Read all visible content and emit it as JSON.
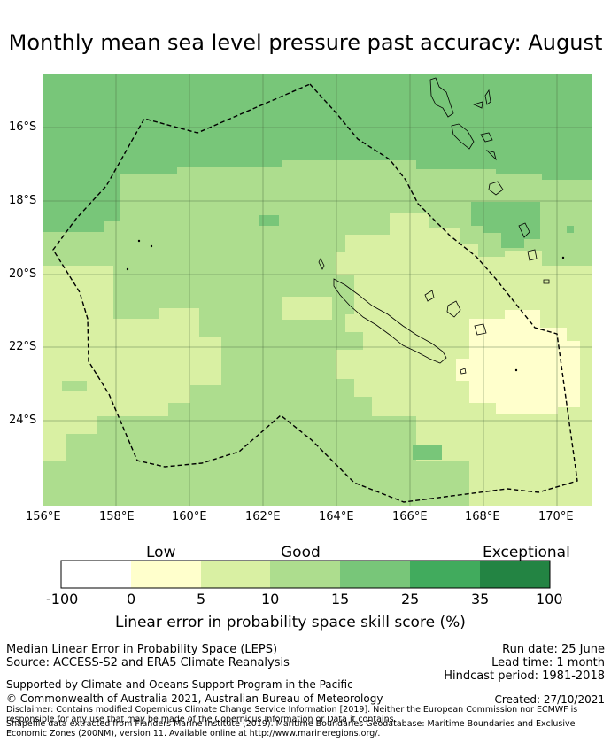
{
  "title": "Monthly mean sea level pressure past accuracy: August",
  "map": {
    "lat_labels": [
      "16°S",
      "18°S",
      "20°S",
      "22°S",
      "24°S"
    ],
    "lon_labels": [
      "156°E",
      "158°E",
      "160°E",
      "162°E",
      "164°E",
      "166°E",
      "168°E",
      "170°E"
    ],
    "colors": {
      "c0": "#ffffff",
      "c1": "#ffffcc",
      "c2": "#d9f0a3",
      "c3": "#addd8e",
      "c4": "#78c679",
      "c5": "#41ab5d",
      "c6": "#238443",
      "boundary": "#000000"
    }
  },
  "colorbar": {
    "categories": [
      "Low",
      "Good",
      "Exceptional"
    ],
    "ticks": [
      "-100",
      "0",
      "5",
      "10",
      "15",
      "25",
      "35",
      "100"
    ],
    "label": "Linear error in probability space skill score (%)"
  },
  "footer": {
    "left1": "Median Linear Error in Probability Space (LEPS)",
    "left2": "Source: ACCESS-S2 and ERA5 Climate Reanalysis",
    "right1": "Run date: 25 June",
    "right2": "Lead time: 1 month",
    "right3": "Hindcast period: 1981-2018",
    "support": "Supported by Climate and Oceans Support Program in the Pacific",
    "copyright": "© Commonwealth of Australia 2021, Australian Bureau of Meteorology",
    "created": "Created: 27/10/2021",
    "disclaimer": "Disclaimer: Contains modified Copernicus Climate Change Service Information [2019]. Neither the European Commission nor ECMWF is responsible for any use that may be made of the Copernicus Information or Data it contains.",
    "shapefile": "Shapefile data extracted from Flanders Marine Institute (2019). Maritime Boundaries Geodatabase: Maritime Boundaries and Exclusive Economic Zones (200NM), version 11. Available online at http://www.marineregions.org/."
  }
}
